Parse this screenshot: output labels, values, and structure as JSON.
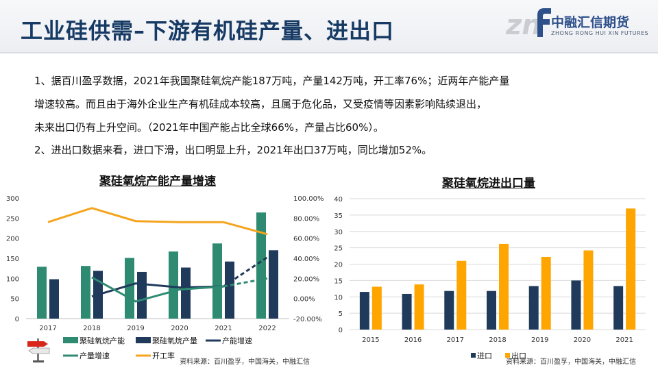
{
  "header": {
    "title": "工业硅供需–下游有机硅产量、进出口",
    "logo_cn": "中融汇信期货",
    "logo_en": "ZHONG RONG HUI XIN FUTURES",
    "logo_mark": "zn"
  },
  "body": {
    "paragraphs": [
      "1、据百川盈孚数据，2021年我国聚硅氧烷产能187万吨，产量142万吨，开工率76%；近两年产能产量",
      "增速较高。而且由于海外企业生产有机硅成本较高，且属于危化品，又受疫情等因素影响陆续退出，",
      "未来出口仍有上升空间。（2021年中国产能占比全球66%，产量占比60%）。",
      "2、进出口数据来看，进口下滑，出口明显上升，2021年出口37万吨，同比增加52%。"
    ]
  },
  "colors": {
    "title": "#163a64",
    "capacity": "#2e8b72",
    "production": "#1f3a5a",
    "capacity_growth": "#1f3a5a",
    "production_growth": "#2e8b72",
    "utilization": "#f5a41d",
    "import": "#1f3a5a",
    "export": "#ffa500"
  },
  "chart_data": [
    {
      "type": "bar",
      "title": "聚硅氧烷产能产量增速",
      "categories": [
        "2017",
        "2018",
        "2019",
        "2020",
        "2021",
        "2022"
      ],
      "ylim": [
        0,
        300
      ],
      "y_ticks": [
        "0",
        "50",
        "100",
        "150",
        "200",
        "250",
        "300"
      ],
      "y2lim": [
        -0.2,
        1.0
      ],
      "y2_ticks": [
        "-20.00%",
        "0.00%",
        "20.00%",
        "40.00%",
        "60.00%",
        "80.00%",
        "100.00%"
      ],
      "series": [
        {
          "name": "聚硅氧烷产能",
          "kind": "bar",
          "axis": "left",
          "values": [
            129,
            131,
            151,
            167,
            187,
            264
          ]
        },
        {
          "name": "聚硅氧烷产量",
          "kind": "bar",
          "axis": "left",
          "values": [
            98,
            119,
            116,
            127,
            142,
            170
          ]
        },
        {
          "name": "产能增速",
          "kind": "line",
          "axis": "right",
          "values": [
            null,
            0.02,
            0.15,
            0.11,
            0.12,
            0.41
          ],
          "dashed_from_index": 4
        },
        {
          "name": "产量增速",
          "kind": "line",
          "axis": "right",
          "values": [
            null,
            0.21,
            -0.03,
            0.09,
            0.12,
            0.2
          ],
          "dashed_from_index": 4
        },
        {
          "name": "开工率",
          "kind": "line",
          "axis": "right",
          "values": [
            0.76,
            0.9,
            0.77,
            0.76,
            0.76,
            0.64
          ]
        }
      ],
      "legend_position": "bottom",
      "source": "资料来源：百川盈孚，中国海关，中融汇信"
    },
    {
      "type": "bar",
      "title": "聚硅氧烷进出口量",
      "categories": [
        "2015",
        "2016",
        "2017",
        "2018",
        "2019",
        "2020",
        "2021"
      ],
      "ylim": [
        0,
        40
      ],
      "y_ticks": [
        "0",
        "5",
        "10",
        "15",
        "20",
        "25",
        "30",
        "35",
        "40"
      ],
      "grid": true,
      "series": [
        {
          "name": "进口",
          "values": [
            11.5,
            10.9,
            11.8,
            11.8,
            13.3,
            15.0,
            13.3
          ]
        },
        {
          "name": "出口",
          "values": [
            13.1,
            13.8,
            21.0,
            26.2,
            22.2,
            24.2,
            37.0
          ]
        }
      ],
      "legend_position": "bottom",
      "source": "资料来源：百川盈孚，中国海关，中融汇信"
    }
  ]
}
